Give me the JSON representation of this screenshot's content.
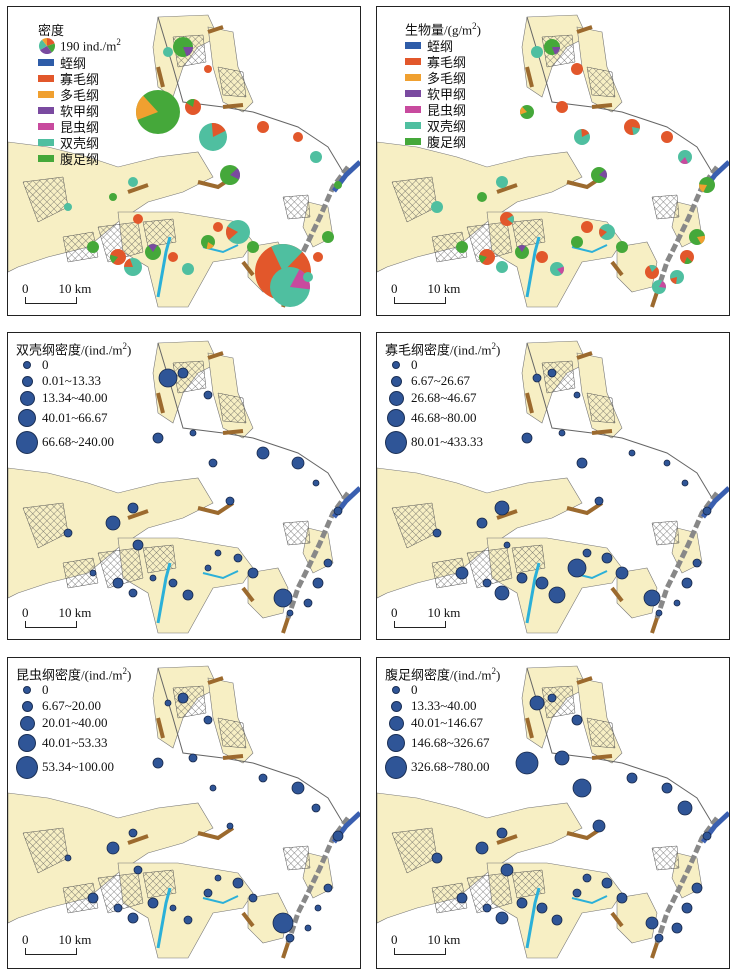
{
  "panels": {
    "p1": {
      "title": "密度",
      "pie_label": "190 ind./m",
      "pie_label_sup": "2",
      "classes": [
        "蛭纲",
        "寡毛纲",
        "多毛纲",
        "软甲纲",
        "昆虫纲",
        "双壳纲",
        "腹足纲"
      ]
    },
    "p2": {
      "title": "生物量/(g/m",
      "title_sup": "2",
      "title_end": ")",
      "classes": [
        "蛭纲",
        "寡毛纲",
        "多毛纲",
        "软甲纲",
        "昆虫纲",
        "双壳纲",
        "腹足纲"
      ]
    },
    "p3": {
      "title": "双壳纲密度/(ind./m",
      "title_sup": "2",
      "title_end": ")",
      "ranges": [
        "0",
        "0.01~13.33",
        "13.34~40.00",
        "40.01~66.67",
        "66.68~240.00"
      ]
    },
    "p4": {
      "title": "寡毛纲密度/(ind./m",
      "title_sup": "2",
      "title_end": ")",
      "ranges": [
        "0",
        "6.67~26.67",
        "26.68~46.67",
        "46.68~80.00",
        "80.01~433.33"
      ]
    },
    "p5": {
      "title": "昆虫纲密度/(ind./m",
      "title_sup": "2",
      "title_end": ")",
      "ranges": [
        "0",
        "6.67~20.00",
        "20.01~40.00",
        "40.01~53.33",
        "53.34~100.00"
      ]
    },
    "p6": {
      "title": "腹足纲密度/(ind./m",
      "title_sup": "2",
      "title_end": ")",
      "ranges": [
        "0",
        "13.33~40.00",
        "40.01~146.67",
        "146.68~326.67",
        "326.68~780.00"
      ]
    }
  },
  "scale": {
    "zero": "0",
    "ten": "10 km"
  },
  "colors": {
    "蛭纲": "#2e5ca8",
    "寡毛纲": "#e2572b",
    "多毛纲": "#f0a030",
    "软甲纲": "#7a4aa0",
    "昆虫纲": "#c84a9e",
    "双壳纲": "#4fbfa0",
    "腹足纲": "#45a83a",
    "dot": "#2f5597",
    "land": "#f7efc4",
    "coast": "#3a5fb0",
    "water": "#2bb0d8"
  }
}
